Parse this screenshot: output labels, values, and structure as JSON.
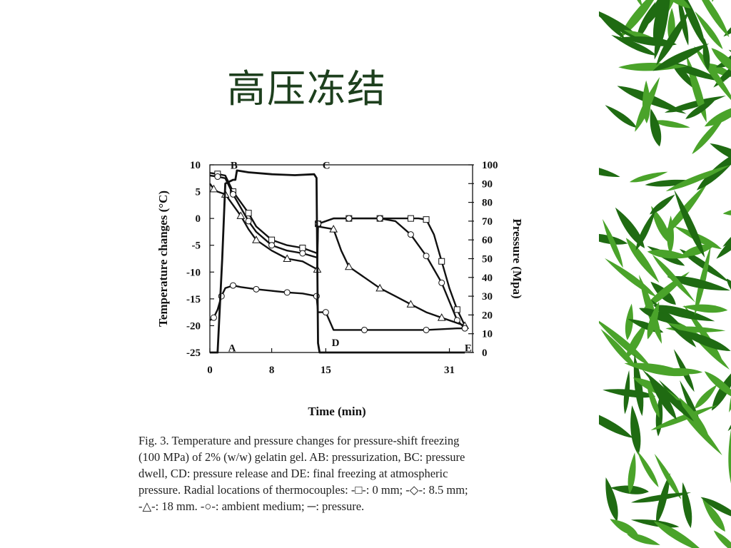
{
  "slide": {
    "title": "高压冻结",
    "caption_lines": [
      "Fig. 3. Temperature and pressure changes for pressure-shift freezing",
      "(100 MPa) of 2% (w/w) gelatin gel. AB: pressurization, BC: pressure",
      "dwell, CD: pressure release and DE: final freezing at atmospheric",
      "pressure. Radial locations of thermocouples: -□-: 0 mm; -◇-: 8.5 mm;",
      "-△-: 18 mm. -○-: ambient medium; ─: pressure."
    ]
  },
  "colors": {
    "title": "#1d3f1d",
    "line": "#111111",
    "bamboo_dark": "#1f6b12",
    "bamboo_light": "#4aa32a"
  },
  "chart_data": {
    "type": "line",
    "xlabel": "Time (min)",
    "ylabel_left": "Temperature changes (°C)",
    "ylabel_right": "Pressure (Mpa)",
    "x_ticks": [
      "0",
      "8",
      "15",
      "31"
    ],
    "y_left_ticks": [
      "10",
      "5",
      "0",
      "-5",
      "-10",
      "-15",
      "-20",
      "-25"
    ],
    "y_right_ticks": [
      "100",
      "90",
      "80",
      "70",
      "60",
      "50",
      "40",
      "30",
      "20",
      "10",
      "0"
    ],
    "ylim_left": [
      -25,
      10
    ],
    "ylim_right": [
      0,
      100
    ],
    "point_labels": [
      "A",
      "B",
      "C",
      "D",
      "E"
    ],
    "series": [
      {
        "name": "-□-: 0 mm",
        "marker": "square",
        "axis": "left",
        "x": [
          0,
          1,
          2,
          3,
          4,
          5,
          6,
          8,
          10,
          12,
          13.9,
          14,
          16,
          18,
          20,
          22,
          24,
          26,
          27,
          28,
          29,
          30,
          31,
          32,
          33
        ],
        "y": [
          8.5,
          8.3,
          8.0,
          5.0,
          3.0,
          1.0,
          -1.5,
          -4.0,
          -5.0,
          -5.5,
          -6.5,
          -1.0,
          0,
          0,
          0,
          0,
          0,
          0,
          0,
          -0.2,
          -3.0,
          -8.0,
          -13.0,
          -17.0,
          -20.0
        ]
      },
      {
        "name": "-◇-: 8.5 mm",
        "marker": "circle",
        "axis": "left",
        "x": [
          0,
          1,
          2,
          3,
          4,
          5,
          6,
          8,
          10,
          12,
          13.9,
          14,
          16,
          18,
          20,
          22,
          24,
          26,
          27,
          28,
          29,
          30,
          31,
          32,
          33
        ],
        "y": [
          8.0,
          7.8,
          7.5,
          4.5,
          2.0,
          -0.5,
          -2.5,
          -5.0,
          -6.0,
          -6.5,
          -7.3,
          -1.0,
          0,
          0,
          0,
          0,
          -0.5,
          -3.0,
          -5.0,
          -7.0,
          -9.5,
          -12.0,
          -15.5,
          -19.0,
          -20.5
        ]
      },
      {
        "name": "-△-: 18 mm",
        "marker": "triangle",
        "axis": "left",
        "x": [
          0,
          0.5,
          1,
          2,
          3,
          4,
          5,
          6,
          8,
          10,
          12,
          13.9,
          14,
          16,
          17,
          18,
          20,
          22,
          24,
          26,
          28,
          30,
          32,
          33
        ],
        "y": [
          6.5,
          5.5,
          5.0,
          4.5,
          2.5,
          0.5,
          -2.0,
          -4.0,
          -6.0,
          -7.5,
          -8.0,
          -9.5,
          -1.5,
          -2.0,
          -6.0,
          -9.0,
          -11.0,
          -13.0,
          -14.5,
          -16.0,
          -17.5,
          -18.5,
          -19.5,
          -20.0
        ]
      },
      {
        "name": "-○-: ambient medium",
        "marker": "circle",
        "axis": "left",
        "x": [
          0,
          0.5,
          1,
          1.5,
          2,
          3,
          4,
          6,
          8,
          10,
          12,
          13.8,
          14,
          15,
          16,
          20,
          24,
          28,
          32,
          33
        ],
        "y": [
          -19.0,
          -18.5,
          -17.0,
          -14.5,
          -13.0,
          -12.5,
          -12.8,
          -13.2,
          -13.5,
          -13.8,
          -14.0,
          -14.5,
          -17.5,
          -17.5,
          -20.8,
          -20.8,
          -20.8,
          -20.8,
          -20.5,
          -20.5
        ]
      },
      {
        "name": "─: pressure",
        "marker": "none",
        "axis": "right",
        "x": [
          0,
          1.0,
          1.6,
          2,
          3,
          3.3,
          3.5,
          5,
          8,
          11,
          13.5,
          13.8,
          14,
          14.2,
          16,
          20,
          26,
          32,
          33
        ],
        "y": [
          0,
          0,
          50,
          90,
          92,
          92,
          97,
          96,
          95,
          94.5,
          95,
          93,
          5,
          0,
          0,
          0,
          0,
          0,
          0
        ]
      }
    ]
  }
}
